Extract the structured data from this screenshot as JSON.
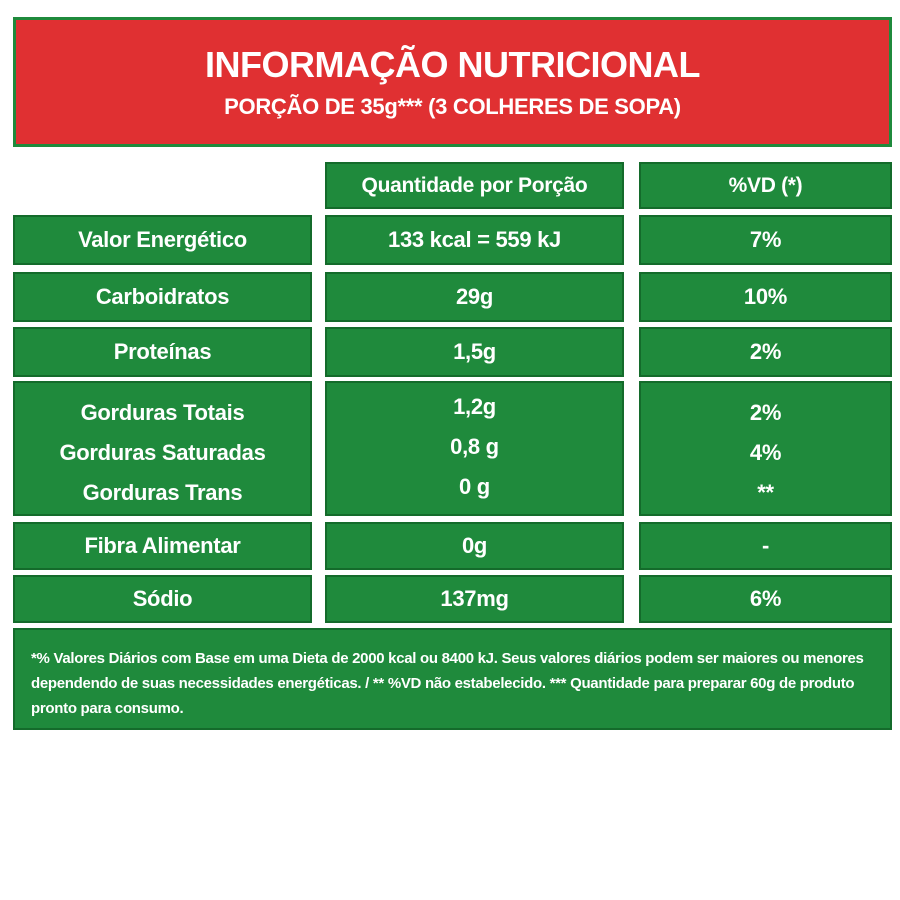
{
  "header": {
    "title": "INFORMAÇÃO NUTRICIONAL",
    "subtitle": "PORÇÃO DE 35g*** (3 COLHERES DE SOPA)"
  },
  "columns": {
    "quantity": "Quantidade por Porção",
    "dv": "%VD (*)"
  },
  "rows": [
    {
      "label": "Valor Energético",
      "quantity": "133 kcal = 559 kJ",
      "dv": "7%"
    },
    {
      "label": "Carboidratos",
      "quantity": "29g",
      "dv": "10%"
    },
    {
      "label": "Proteínas",
      "quantity": "1,5g",
      "dv": "2%"
    },
    {
      "label": "Fibra Alimentar",
      "quantity": "0g",
      "dv": "-"
    },
    {
      "label": "Sódio",
      "quantity": "137mg",
      "dv": "6%"
    }
  ],
  "fats": {
    "total_label": "Gorduras Totais",
    "total_quantity": "1,2g",
    "total_dv": "2%",
    "saturated_label": "Gorduras Saturadas",
    "saturated_quantity": "0,8 g",
    "saturated_dv": "4%",
    "trans_label": "Gorduras Trans",
    "trans_quantity": "0 g",
    "trans_dv": "**"
  },
  "footnote": "*% Valores Diários com Base em uma Dieta de 2000 kcal ou 8400 kJ. Seus valores diários podem ser maiores ou menores dependendo de suas necessidades energéticas. / ** %VD não estabelecido. *** Quantidade para preparar 60g de produto pronto para consumo.",
  "colors": {
    "header_red": "#e03032",
    "panel_green": "#1f8a3c",
    "border_green": "#146b2b",
    "text": "#ffffff"
  }
}
